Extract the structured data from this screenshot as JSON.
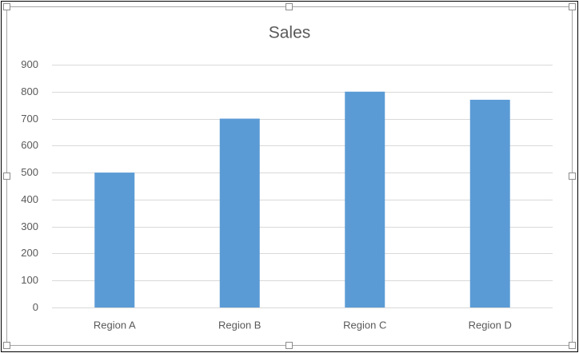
{
  "chart_data": {
    "type": "bar",
    "title": "Sales",
    "categories": [
      "Region A",
      "Region B",
      "Region C",
      "Region D"
    ],
    "values": [
      500,
      700,
      800,
      770
    ],
    "color": "#5b9bd5",
    "ylim": [
      0,
      900
    ],
    "yticks": [
      0,
      100,
      200,
      300,
      400,
      500,
      600,
      700,
      800,
      900
    ],
    "grid": true
  }
}
